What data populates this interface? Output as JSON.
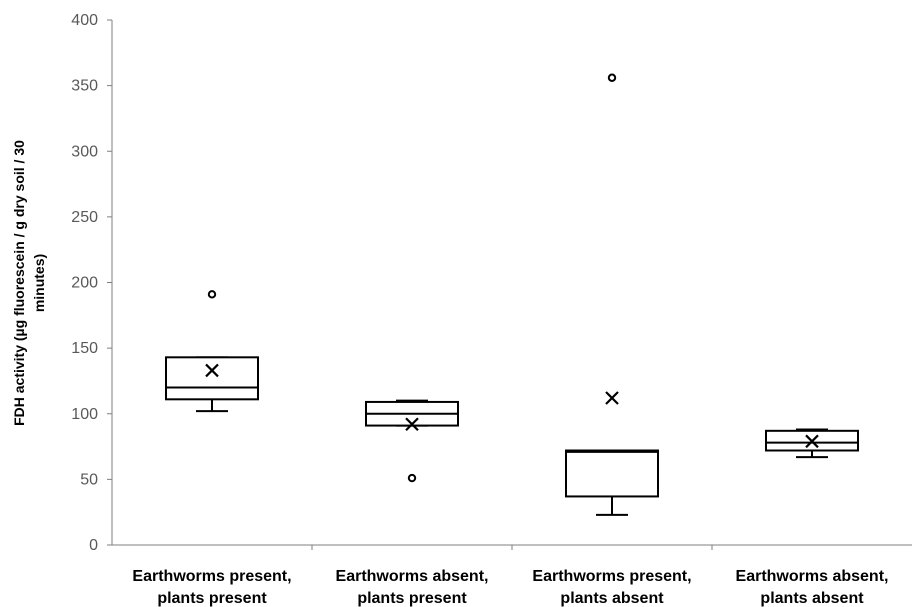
{
  "chart_data": {
    "type": "boxplot",
    "title": "",
    "ylabel_lines": [
      "FDH activity (µg fluorescein / g dry soil / 30",
      "minutes)"
    ],
    "xlabel": "",
    "ylim": [
      0,
      400
    ],
    "yticks": [
      0,
      50,
      100,
      150,
      200,
      250,
      300,
      350,
      400
    ],
    "grid": false,
    "legend": "none",
    "colors": {
      "box": "#000000",
      "axis": "#7f7f7f",
      "tick_text": "#595959"
    },
    "categories": [
      {
        "lines": [
          "Earthworms present,",
          "plants present"
        ]
      },
      {
        "lines": [
          "Earthworms absent,",
          "plants present"
        ]
      },
      {
        "lines": [
          "Earthworms present,",
          "plants absent"
        ]
      },
      {
        "lines": [
          "Earthworms absent,",
          "plants absent"
        ]
      }
    ],
    "boxes": [
      {
        "whisker_low": 102,
        "q1": 111,
        "median": 120,
        "q3": 143,
        "whisker_high": 143,
        "mean": 133,
        "outliers": [
          191
        ]
      },
      {
        "whisker_low": 91,
        "q1": 91,
        "median": 100,
        "q3": 109,
        "whisker_high": 110,
        "mean": 92,
        "outliers": [
          51
        ]
      },
      {
        "whisker_low": 23,
        "q1": 37,
        "median": 71,
        "q3": 72,
        "whisker_high": 72,
        "mean": 112,
        "outliers": [
          356
        ]
      },
      {
        "whisker_low": 67,
        "q1": 72,
        "median": 78,
        "q3": 87,
        "whisker_high": 88,
        "mean": 79,
        "outliers": []
      }
    ]
  }
}
